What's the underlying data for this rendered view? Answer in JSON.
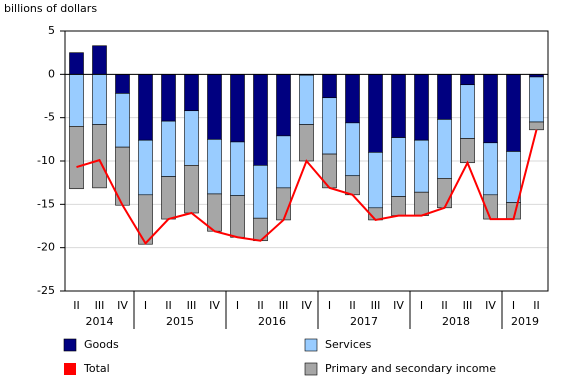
{
  "chart_data": {
    "type": "bar",
    "y_label": "billions of dollars",
    "categories": [
      "II",
      "III",
      "IV",
      "I",
      "II",
      "III",
      "IV",
      "I",
      "II",
      "III",
      "IV",
      "I",
      "II",
      "III",
      "IV",
      "I",
      "II",
      "III",
      "IV",
      "I",
      "II"
    ],
    "years": [
      "2014",
      null,
      null,
      "2015",
      null,
      null,
      null,
      "2016",
      null,
      null,
      null,
      "2017",
      null,
      null,
      null,
      "2018",
      null,
      null,
      null,
      "2019",
      null
    ],
    "series": [
      {
        "name": "Goods",
        "color": "#000080",
        "values": [
          2.5,
          3.3,
          -2.2,
          -7.6,
          -5.4,
          -4.2,
          -7.5,
          -7.8,
          -10.5,
          -7.1,
          -0.1,
          -2.7,
          -5.6,
          -9.0,
          -7.3,
          -7.6,
          -5.2,
          -1.2,
          -7.9,
          -8.9,
          -0.3
        ]
      },
      {
        "name": "Services",
        "color": "#99ccff",
        "values": [
          -6.0,
          -5.8,
          -6.2,
          -6.3,
          -6.4,
          -6.3,
          -6.3,
          -6.2,
          -6.1,
          -6.0,
          -5.7,
          -6.5,
          -6.1,
          -6.4,
          -6.8,
          -6.0,
          -6.8,
          -6.2,
          -6.0,
          -5.9,
          -5.2
        ]
      },
      {
        "name": "Primary and secondary income",
        "color": "#a6a6a6",
        "values": [
          -7.2,
          -7.3,
          -6.7,
          -5.7,
          -4.9,
          -5.5,
          -4.3,
          -4.8,
          -2.6,
          -3.7,
          -4.2,
          -3.9,
          -2.2,
          -1.4,
          -2.2,
          -2.7,
          -3.4,
          -2.8,
          -2.8,
          -1.9,
          -0.9
        ]
      },
      {
        "name": "Total",
        "color": "#ff0000",
        "type": "line",
        "values": [
          -10.7,
          -9.9,
          -15.1,
          -19.5,
          -16.7,
          -16.0,
          -18.1,
          -18.8,
          -19.2,
          -16.8,
          -10.0,
          -13.1,
          -13.9,
          -16.8,
          -16.3,
          -16.3,
          -15.4,
          -10.2,
          -16.7,
          -16.7,
          -6.4
        ]
      }
    ],
    "ylim": [
      -25,
      5
    ],
    "yticks": [
      -25,
      -20,
      -15,
      -10,
      -5,
      0,
      5
    ],
    "grid": true
  }
}
